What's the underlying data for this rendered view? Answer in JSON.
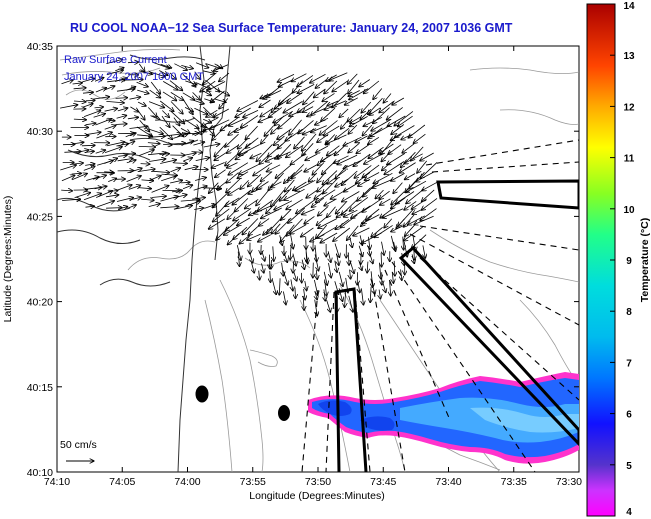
{
  "title": "RU COOL  NOAA−12  Sea Surface Temperature:  January 24, 2007 1036 GMT",
  "legend": {
    "line1": "Raw Surface Current",
    "line2": "January 24, 2007 1000 GMT"
  },
  "x_axis": {
    "label": "Longitude (Degrees:Minutes)",
    "ticks": [
      "74:10",
      "74:05",
      "74:00",
      "73:55",
      "73:50",
      "73:45",
      "73:40",
      "73:35",
      "73:30"
    ]
  },
  "y_axis": {
    "label": "Latitude (Degrees:Minutes)",
    "ticks": [
      "40:35",
      "40:30",
      "40:25",
      "40:20",
      "40:15",
      "40:10"
    ]
  },
  "colorbar": {
    "label": "Temperature (°C)",
    "ticks": [
      "14",
      "13",
      "12",
      "11",
      "10",
      "9",
      "8",
      "7",
      "6",
      "5",
      "4"
    ],
    "min": 4,
    "max": 14
  },
  "scale_vector": {
    "label": "50 cm/s"
  },
  "colors": {
    "title": "#1a1acc",
    "coastline": "#222222",
    "contour": "#9a9a9a",
    "vector": "#000000",
    "sst_warm_edge": "#ff33cc",
    "sst_core": "#2266ff"
  }
}
